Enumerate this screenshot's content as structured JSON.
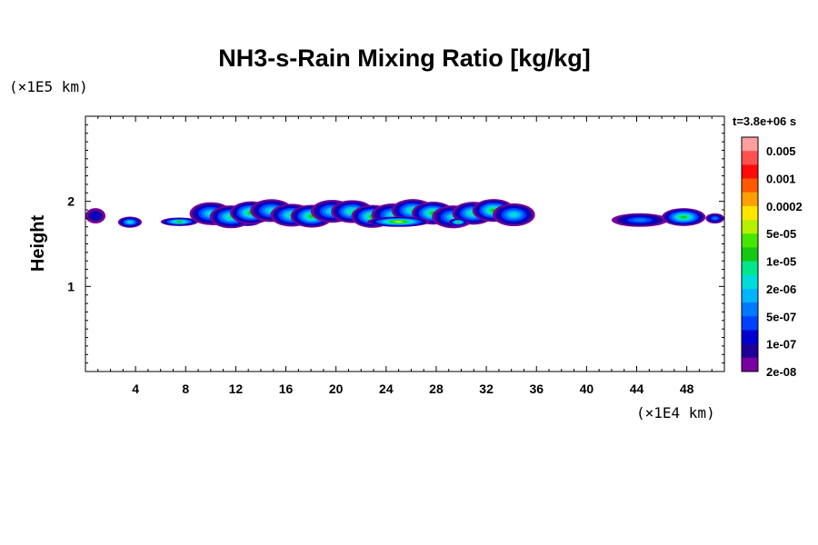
{
  "chart_data": {
    "type": "heatmap",
    "title": "NH3-s-Rain Mixing Ratio [kg/kg]",
    "xlabel": "",
    "ylabel": "Height",
    "x_unit": "(×1E4 km)",
    "y_unit": "(×1E5 km)",
    "time_label": "t=3.8e+06 s",
    "xlim": [
      0,
      51
    ],
    "ylim": [
      0,
      3
    ],
    "x_ticks": [
      4,
      8,
      12,
      16,
      20,
      24,
      28,
      32,
      36,
      40,
      44,
      48
    ],
    "x_tick_labels": [
      "4",
      "8",
      "12",
      "16",
      "20",
      "24",
      "28",
      "32",
      "36",
      "40",
      "44",
      "48"
    ],
    "y_ticks": [
      1,
      2
    ],
    "y_tick_labels": [
      "1",
      "2"
    ],
    "colorbar": {
      "levels": [
        "0.005",
        "0.001",
        "0.0002",
        "5e-05",
        "1e-05",
        "2e-06",
        "5e-07",
        "1e-07",
        "2e-08"
      ],
      "colors": [
        "#ff9f9f",
        "#ff5050",
        "#ff0a0a",
        "#ff5a00",
        "#ffa000",
        "#ffe600",
        "#b4f000",
        "#46e600",
        "#14c814",
        "#00e68c",
        "#00dcdc",
        "#00b4ff",
        "#0078ff",
        "#0040ff",
        "#0000d2",
        "#1e0096",
        "#7800a0"
      ]
    },
    "features": [
      {
        "x_range": [
          0,
          1.6
        ],
        "y_range": [
          1.74,
          1.92
        ],
        "peak": "1e-07"
      },
      {
        "x_range": [
          2.6,
          4.5
        ],
        "y_range": [
          1.69,
          1.82
        ],
        "peak": "2e-06"
      },
      {
        "x_range": [
          6.0,
          9.0
        ],
        "y_range": [
          1.71,
          1.81
        ],
        "peak": "1e-05"
      },
      {
        "x_range": [
          9.5,
          11.0
        ],
        "y_range": [
          1.72,
          1.84
        ],
        "peak": "2e-06"
      },
      {
        "x_range": [
          11.8,
          14.0
        ],
        "y_range": [
          1.71,
          1.82
        ],
        "peak": "5e-06"
      },
      {
        "x_range": [
          9.2,
          35.0
        ],
        "y_range": [
          1.68,
          2.0
        ],
        "peak": "5e-05"
      },
      {
        "x_range": [
          22.5,
          27.5
        ],
        "y_range": [
          1.7,
          1.82
        ],
        "peak": "5e-05"
      },
      {
        "x_range": [
          29.0,
          30.5
        ],
        "y_range": [
          1.71,
          1.8
        ],
        "peak": "1e-05"
      },
      {
        "x_range": [
          42.0,
          46.5
        ],
        "y_range": [
          1.7,
          1.86
        ],
        "peak": "5e-07"
      },
      {
        "x_range": [
          46.0,
          49.5
        ],
        "y_range": [
          1.71,
          1.92
        ],
        "peak": "1e-05"
      },
      {
        "x_range": [
          49.5,
          51.0
        ],
        "y_range": [
          1.74,
          1.86
        ],
        "peak": "5e-07"
      }
    ]
  }
}
